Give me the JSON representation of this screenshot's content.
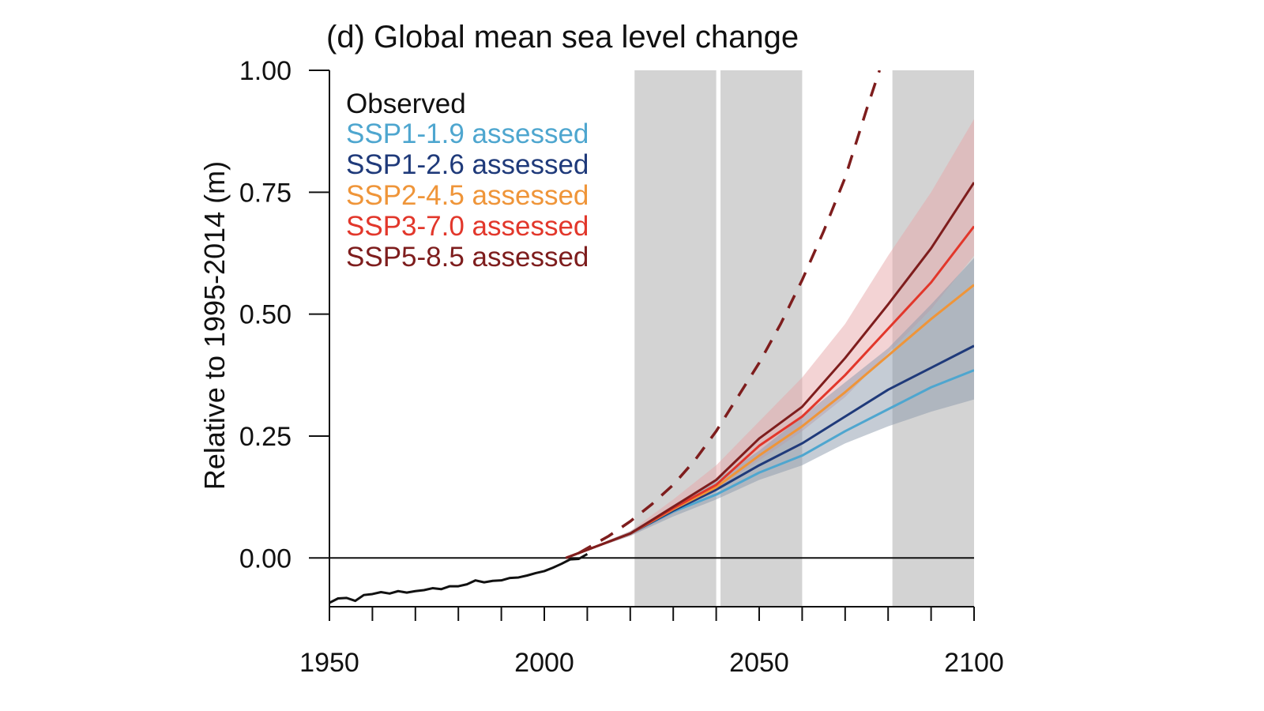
{
  "chart_data": {
    "type": "line",
    "title": "(d) Global mean sea level change",
    "xlabel": "",
    "ylabel": "Relative to 1995-2014 (m)",
    "xlim": [
      1950,
      2100
    ],
    "ylim": [
      -0.1,
      1.0
    ],
    "x_ticks": [
      1950,
      2000,
      2050,
      2100
    ],
    "x_tick_labels": [
      "1950",
      "2000",
      "2050",
      "2100"
    ],
    "x_minor_tick_step": 10,
    "y_ticks": [
      0,
      0.25,
      0.5,
      0.75,
      1.0
    ],
    "y_tick_labels": [
      "0.00",
      "0.25",
      "0.50",
      "0.75",
      "1.00"
    ],
    "grid": false,
    "zero_line": true,
    "legend_position": "top-left",
    "shaded_periods": [
      [
        2021,
        2040
      ],
      [
        2041,
        2060
      ],
      [
        2081,
        2100
      ]
    ],
    "shaded_period_color": "#d3d3d3",
    "observed": {
      "name": "Observed",
      "color": "#111111",
      "x": [
        1950,
        1952,
        1954,
        1956,
        1958,
        1960,
        1962,
        1964,
        1966,
        1968,
        1970,
        1972,
        1974,
        1976,
        1978,
        1980,
        1982,
        1984,
        1986,
        1988,
        1990,
        1992,
        1994,
        1996,
        1998,
        2000,
        2002,
        2004,
        2006,
        2008,
        2010
      ],
      "y": [
        -0.092,
        -0.083,
        -0.082,
        -0.088,
        -0.076,
        -0.074,
        -0.07,
        -0.073,
        -0.068,
        -0.071,
        -0.068,
        -0.066,
        -0.062,
        -0.064,
        -0.058,
        -0.058,
        -0.054,
        -0.046,
        -0.05,
        -0.047,
        -0.046,
        -0.041,
        -0.04,
        -0.036,
        -0.031,
        -0.027,
        -0.02,
        -0.012,
        -0.003,
        -0.002,
        0.008
      ]
    },
    "x": [
      2005,
      2020,
      2030,
      2040,
      2050,
      2060,
      2070,
      2080,
      2090,
      2100
    ],
    "series": [
      {
        "name": "SSP1-1.9 assessed",
        "color": "#4ea6cf",
        "values": [
          0.0,
          0.05,
          0.095,
          0.13,
          0.175,
          0.21,
          0.26,
          0.305,
          0.35,
          0.385
        ]
      },
      {
        "name": "SSP1-2.6 assessed",
        "color": "#1f3a7a",
        "values": [
          0.0,
          0.05,
          0.097,
          0.14,
          0.19,
          0.235,
          0.29,
          0.345,
          0.39,
          0.435
        ]
      },
      {
        "name": "SSP2-4.5 assessed",
        "color": "#ef9539",
        "values": [
          0.0,
          0.05,
          0.1,
          0.145,
          0.21,
          0.27,
          0.34,
          0.415,
          0.49,
          0.56
        ]
      },
      {
        "name": "SSP3-7.0 assessed",
        "color": "#e2372b",
        "values": [
          0.0,
          0.05,
          0.102,
          0.15,
          0.23,
          0.29,
          0.375,
          0.47,
          0.565,
          0.68
        ]
      },
      {
        "name": "SSP5-8.5 assessed",
        "color": "#7e1d1d",
        "values": [
          0.0,
          0.05,
          0.105,
          0.16,
          0.245,
          0.31,
          0.41,
          0.52,
          0.635,
          0.77
        ]
      }
    ],
    "ranges": [
      {
        "series": "SSP5-8.5 assessed",
        "color": "#e8a7aa",
        "lower": [
          0.0,
          0.045,
          0.09,
          0.14,
          0.2,
          0.26,
          0.33,
          0.42,
          0.51,
          0.62
        ],
        "upper": [
          0.0,
          0.055,
          0.12,
          0.19,
          0.28,
          0.37,
          0.48,
          0.62,
          0.75,
          0.9
        ]
      },
      {
        "series": "SSP1-2.6 assessed",
        "color": "#8c9aac",
        "lower": [
          0.0,
          0.045,
          0.085,
          0.12,
          0.16,
          0.19,
          0.235,
          0.27,
          0.3,
          0.325
        ],
        "upper": [
          0.0,
          0.055,
          0.105,
          0.16,
          0.22,
          0.29,
          0.36,
          0.43,
          0.52,
          0.615
        ]
      }
    ],
    "low_confidence": {
      "series": "SSP5-8.5",
      "style": "dashed",
      "color": "#7e1d1d",
      "x": [
        2008,
        2015,
        2020,
        2025,
        2030,
        2035,
        2040,
        2045,
        2050,
        2055,
        2060,
        2065,
        2070,
        2075,
        2078
      ],
      "values": [
        0.01,
        0.045,
        0.075,
        0.11,
        0.15,
        0.2,
        0.26,
        0.33,
        0.4,
        0.48,
        0.57,
        0.67,
        0.78,
        0.92,
        1.0
      ]
    }
  }
}
